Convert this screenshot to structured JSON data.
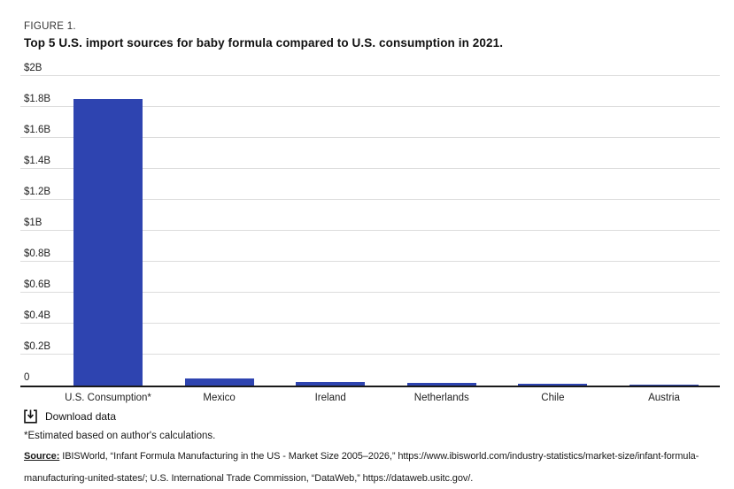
{
  "header": {
    "figure_label": "FIGURE 1.",
    "title": "Top 5 U.S. import sources for baby formula compared to U.S. consumption in 2021."
  },
  "chart_data": {
    "type": "bar",
    "title": "Top 5 U.S. import sources for baby formula compared to U.S. consumption in 2021.",
    "unit": "USD billions",
    "categories": [
      "U.S. Consumption*",
      "Mexico",
      "Ireland",
      "Netherlands",
      "Chile",
      "Austria"
    ],
    "values": [
      1.85,
      0.046,
      0.023,
      0.015,
      0.012,
      0.003
    ],
    "xlabel": "",
    "ylabel": "",
    "ylim": [
      0,
      2
    ],
    "ytick_values": [
      0,
      0.2,
      0.4,
      0.6,
      0.8,
      1.0,
      1.2,
      1.4,
      1.6,
      1.8,
      2.0
    ],
    "ytick_labels": [
      "0",
      "$0.2B",
      "$0.4B",
      "$0.6B",
      "$0.8B",
      "$1B",
      "$1.2B",
      "$1.4B",
      "$1.6B",
      "$1.8B",
      "$2B"
    ],
    "grid": true,
    "legend": "none",
    "bar_color": "#2e44b0"
  },
  "download": {
    "label": "Download data"
  },
  "notes": {
    "footnote": "*Estimated based on author's calculations.",
    "source_label": "Source:",
    "source_line1": "IBISWorld, “Infant Formula Manufacturing in the US - Market Size 2005–2026,” https://www.ibisworld.com/industry-statistics/market-size/infant-formula-",
    "source_line2": "manufacturing-united-states/; U.S. International Trade Commission, “DataWeb,” https://dataweb.usitc.gov/."
  }
}
